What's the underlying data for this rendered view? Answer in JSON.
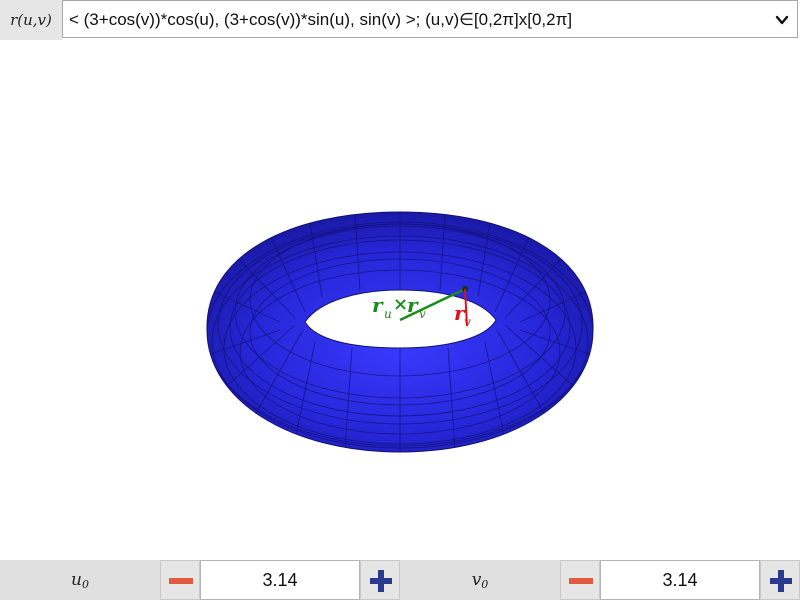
{
  "function_bar": {
    "label_r": "r(u,v)",
    "expression": "< (3+cos(v))*cos(u), (3+cos(v))*sin(u), sin(v) >; (u,v)∈[0,2π]x[0,2π]"
  },
  "scene": {
    "surface_color": "#2a2ad6",
    "normal_label_main": "r",
    "normal_label_sub_u": "u",
    "normal_label_cross": "×",
    "normal_label_sub_v": "v",
    "normal_color": "#1a8a1a",
    "rv_label": "r",
    "rv_label_sub": "v",
    "rv_color": "#e0101a"
  },
  "controls": {
    "u0": {
      "label": "u",
      "sub": "0",
      "value": "3.14"
    },
    "v0": {
      "label": "v",
      "sub": "0",
      "value": "3.14"
    },
    "minus_color": "#e05a40",
    "plus_color": "#2a3b8f"
  }
}
